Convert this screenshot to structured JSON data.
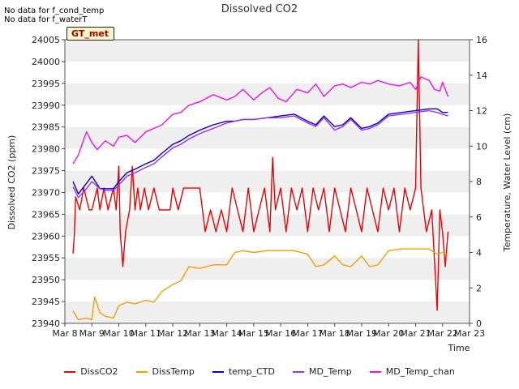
{
  "notes": [
    "No data for f_cond_temp",
    "No data for f_waterT"
  ],
  "badge": "GT_met",
  "chart_data": {
    "type": "line",
    "title": "Dissolved CO2",
    "xlabel": "Time",
    "ylabel_left": "Dissolved CO2 (ppm)",
    "ylabel_right": "Temperature, Water Level (cm)",
    "x_ticks": [
      "Mar 8",
      "Mar 9",
      "Mar 10",
      "Mar 11",
      "Mar 12",
      "Mar 13",
      "Mar 14",
      "Mar 15",
      "Mar 16",
      "Mar 17",
      "Mar 18",
      "Mar 19",
      "Mar 20",
      "Mar 21",
      "Mar 22",
      "Mar 23"
    ],
    "xlim": [
      0,
      15
    ],
    "ylim_left": [
      23940,
      24005
    ],
    "ylim_right": [
      0,
      16
    ],
    "left_ticks": [
      23940,
      23945,
      23950,
      23955,
      23960,
      23965,
      23970,
      23975,
      23980,
      23985,
      23990,
      23995,
      24000,
      24005
    ],
    "right_ticks": [
      0,
      2,
      4,
      6,
      8,
      10,
      12,
      14,
      16
    ],
    "grid": "horizontal bands",
    "legend_position": "bottom",
    "series": [
      {
        "name": "DissCO2",
        "axis": "left",
        "color": "#ee0000",
        "x": [
          0.3,
          0.35,
          0.4,
          0.55,
          0.7,
          0.9,
          1.0,
          1.2,
          1.3,
          1.45,
          1.6,
          1.8,
          1.9,
          2.0,
          2.05,
          2.15,
          2.25,
          2.4,
          2.5,
          2.6,
          2.7,
          2.8,
          2.95,
          3.1,
          3.3,
          3.5,
          3.7,
          3.9,
          4.0,
          4.2,
          4.4,
          4.6,
          4.8,
          5.0,
          5.2,
          5.4,
          5.6,
          5.8,
          6.0,
          6.2,
          6.4,
          6.6,
          6.8,
          7.0,
          7.2,
          7.4,
          7.6,
          7.7,
          7.8,
          8.0,
          8.2,
          8.4,
          8.6,
          8.8,
          9.0,
          9.2,
          9.4,
          9.6,
          9.8,
          10.0,
          10.2,
          10.4,
          10.6,
          10.8,
          11.0,
          11.2,
          11.4,
          11.6,
          11.8,
          12.0,
          12.2,
          12.4,
          12.6,
          12.8,
          13.0,
          13.1,
          13.2,
          13.3,
          13.4,
          13.6,
          13.8,
          13.9,
          14.0,
          14.1,
          14.2
        ],
        "y": [
          23956,
          23960,
          23969,
          23966,
          23971,
          23966,
          23966,
          23971,
          23966,
          23971,
          23966,
          23971,
          23966,
          23976,
          23961,
          23953,
          23961,
          23966,
          23976,
          23966,
          23971,
          23966,
          23971,
          23966,
          23971,
          23966,
          23966,
          23966,
          23971,
          23966,
          23971,
          23971,
          23971,
          23971,
          23961,
          23966,
          23961,
          23966,
          23961,
          23971,
          23966,
          23961,
          23971,
          23961,
          23966,
          23971,
          23961,
          23978,
          23966,
          23971,
          23961,
          23971,
          23966,
          23971,
          23961,
          23971,
          23966,
          23971,
          23961,
          23971,
          23966,
          23961,
          23971,
          23966,
          23961,
          23971,
          23966,
          23961,
          23971,
          23966,
          23971,
          23961,
          23971,
          23966,
          23971,
          24005,
          23971,
          23966,
          23961,
          23966,
          23943,
          23966,
          23961,
          23953,
          23961
        ]
      },
      {
        "name": "DissTemp",
        "axis": "right",
        "color": "#f5a000",
        "x": [
          0.3,
          0.5,
          0.8,
          1.0,
          1.1,
          1.3,
          1.5,
          1.8,
          2.0,
          2.3,
          2.6,
          3.0,
          3.3,
          3.6,
          4.0,
          4.3,
          4.6,
          5.0,
          5.5,
          6.0,
          6.3,
          6.6,
          7.0,
          7.5,
          8.0,
          8.5,
          9.0,
          9.3,
          9.6,
          10.0,
          10.3,
          10.6,
          11.0,
          11.3,
          11.6,
          12.0,
          12.5,
          13.0,
          13.5,
          13.8,
          14.0,
          14.2
        ],
        "y": [
          0.7,
          0.2,
          0.3,
          0.2,
          1.5,
          0.6,
          0.4,
          0.3,
          1.0,
          1.2,
          1.1,
          1.3,
          1.2,
          1.8,
          2.2,
          2.4,
          3.2,
          3.1,
          3.3,
          3.3,
          4.0,
          4.1,
          4.0,
          4.1,
          4.1,
          4.1,
          3.9,
          3.2,
          3.3,
          3.8,
          3.3,
          3.2,
          3.8,
          3.2,
          3.3,
          4.1,
          4.2,
          4.2,
          4.2,
          3.9,
          4.0,
          3.9
        ]
      },
      {
        "name": "temp_CTD",
        "axis": "right",
        "color": "#0000dd",
        "x": [
          0.3,
          0.5,
          0.8,
          1.0,
          1.3,
          1.5,
          1.8,
          2.0,
          2.3,
          2.6,
          3.0,
          3.3,
          3.6,
          4.0,
          4.3,
          4.6,
          5.0,
          5.5,
          6.0,
          6.3,
          6.6,
          7.0,
          7.5,
          8.0,
          8.5,
          9.0,
          9.3,
          9.6,
          10.0,
          10.3,
          10.6,
          11.0,
          11.3,
          11.6,
          12.0,
          12.5,
          13.0,
          13.5,
          13.8,
          14.0,
          14.2
        ],
        "y": [
          8.0,
          7.3,
          7.9,
          8.3,
          7.6,
          7.6,
          7.6,
          8.0,
          8.5,
          8.7,
          9.0,
          9.2,
          9.6,
          10.1,
          10.3,
          10.6,
          10.9,
          11.2,
          11.4,
          11.4,
          11.5,
          11.5,
          11.6,
          11.7,
          11.8,
          11.4,
          11.2,
          11.7,
          11.1,
          11.2,
          11.6,
          11.0,
          11.1,
          11.3,
          11.8,
          11.9,
          12.0,
          12.1,
          12.1,
          11.9,
          11.9
        ]
      },
      {
        "name": "MD_Temp",
        "axis": "right",
        "color": "#a030e0",
        "x": [
          0.3,
          0.5,
          0.8,
          1.0,
          1.3,
          1.5,
          1.8,
          2.0,
          2.3,
          2.6,
          3.0,
          3.3,
          3.6,
          4.0,
          4.3,
          4.6,
          5.0,
          5.5,
          6.0,
          6.3,
          6.6,
          7.0,
          7.5,
          8.0,
          8.5,
          9.0,
          9.3,
          9.6,
          10.0,
          10.3,
          10.6,
          11.0,
          11.3,
          11.6,
          12.0,
          12.5,
          13.0,
          13.5,
          13.8,
          14.0,
          14.2
        ],
        "y": [
          7.7,
          7.1,
          7.6,
          8.0,
          7.6,
          7.5,
          7.5,
          7.8,
          8.3,
          8.5,
          8.8,
          9.0,
          9.4,
          9.9,
          10.1,
          10.4,
          10.7,
          11.0,
          11.3,
          11.4,
          11.5,
          11.5,
          11.6,
          11.6,
          11.7,
          11.3,
          11.1,
          11.6,
          10.9,
          11.1,
          11.5,
          10.9,
          11.0,
          11.2,
          11.7,
          11.8,
          11.9,
          12.0,
          11.9,
          11.8,
          11.7
        ]
      },
      {
        "name": "MD_Temp_chan",
        "axis": "right",
        "color": "#ee11ee",
        "x": [
          0.3,
          0.5,
          0.8,
          1.0,
          1.2,
          1.5,
          1.8,
          2.0,
          2.3,
          2.6,
          3.0,
          3.3,
          3.6,
          4.0,
          4.3,
          4.6,
          5.0,
          5.5,
          6.0,
          6.3,
          6.6,
          7.0,
          7.3,
          7.6,
          7.9,
          8.2,
          8.6,
          9.0,
          9.3,
          9.6,
          10.0,
          10.3,
          10.6,
          11.0,
          11.3,
          11.6,
          12.0,
          12.4,
          12.8,
          13.0,
          13.2,
          13.5,
          13.7,
          13.9,
          14.0,
          14.2
        ],
        "y": [
          9.0,
          9.5,
          10.8,
          10.2,
          9.8,
          10.3,
          10.0,
          10.5,
          10.6,
          10.2,
          10.8,
          11.0,
          11.2,
          11.8,
          11.9,
          12.3,
          12.5,
          12.9,
          12.6,
          12.8,
          13.2,
          12.6,
          13.0,
          13.3,
          12.7,
          12.5,
          13.2,
          13.0,
          13.5,
          12.8,
          13.4,
          13.5,
          13.3,
          13.6,
          13.5,
          13.7,
          13.5,
          13.4,
          13.6,
          13.2,
          13.9,
          13.7,
          13.2,
          13.1,
          13.6,
          12.8
        ]
      }
    ]
  }
}
